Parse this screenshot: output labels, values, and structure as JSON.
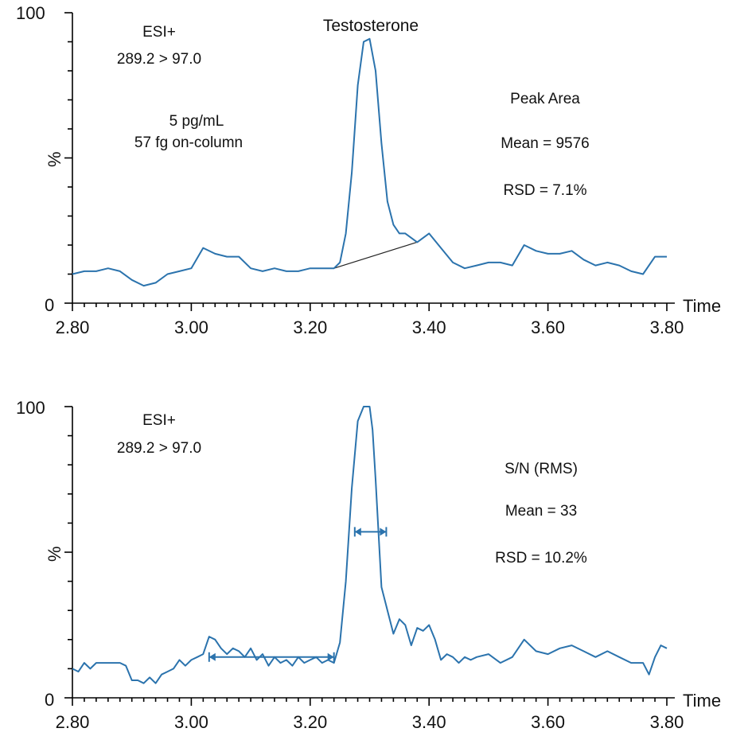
{
  "chart_data": [
    {
      "type": "line",
      "title": "Testosterone",
      "ylabel": "%",
      "xlabel": "Time",
      "xlim": [
        2.8,
        3.8
      ],
      "ylim": [
        0,
        100
      ],
      "x_ticks": [
        "2.80",
        "3.00",
        "3.20",
        "3.40",
        "3.60",
        "3.80"
      ],
      "y_ticks": [
        "0",
        "100"
      ],
      "annotations": {
        "ionization": "ESI+",
        "transition": "289.2 > 97.0",
        "conc": "5 pg/mL",
        "on_column": "57 fg on-column",
        "metric_title": "Peak Area",
        "mean": "Mean = 9576",
        "rsd": "RSD = 7.1%"
      },
      "baseline_segment": {
        "x": [
          3.24,
          3.38
        ],
        "y": [
          12,
          21
        ]
      },
      "series": [
        {
          "color": "#2b73ad",
          "x": [
            2.8,
            2.82,
            2.84,
            2.86,
            2.88,
            2.9,
            2.92,
            2.94,
            2.96,
            2.98,
            3.0,
            3.02,
            3.04,
            3.06,
            3.08,
            3.1,
            3.12,
            3.14,
            3.16,
            3.18,
            3.2,
            3.22,
            3.24,
            3.25,
            3.26,
            3.27,
            3.28,
            3.29,
            3.3,
            3.31,
            3.32,
            3.33,
            3.34,
            3.35,
            3.36,
            3.38,
            3.4,
            3.42,
            3.44,
            3.46,
            3.48,
            3.5,
            3.52,
            3.54,
            3.56,
            3.58,
            3.6,
            3.62,
            3.64,
            3.66,
            3.68,
            3.7,
            3.72,
            3.74,
            3.76,
            3.78,
            3.8
          ],
          "y": [
            10,
            11,
            11,
            12,
            11,
            8,
            6,
            7,
            10,
            11,
            12,
            19,
            17,
            16,
            16,
            12,
            11,
            12,
            11,
            11,
            12,
            12,
            12,
            14,
            24,
            45,
            75,
            90,
            91,
            80,
            55,
            35,
            27,
            24,
            24,
            21,
            24,
            19,
            14,
            12,
            13,
            14,
            14,
            13,
            20,
            18,
            17,
            17,
            18,
            15,
            13,
            14,
            13,
            11,
            10,
            16,
            16
          ]
        }
      ]
    },
    {
      "type": "line",
      "ylabel": "%",
      "xlabel": "Time",
      "xlim": [
        2.8,
        3.8
      ],
      "ylim": [
        0,
        100
      ],
      "x_ticks": [
        "2.80",
        "3.00",
        "3.20",
        "3.40",
        "3.60",
        "3.80"
      ],
      "y_ticks": [
        "0",
        "100"
      ],
      "annotations": {
        "ionization": "ESI+",
        "transition": "289.2 > 97.0",
        "metric_title": "S/N (RMS)",
        "mean": "Mean = 33",
        "rsd": "RSD = 10.2%"
      },
      "noise_interval": {
        "x": [
          3.03,
          3.24
        ],
        "y": 14
      },
      "peak_width_interval": {
        "x": [
          3.275,
          3.328
        ],
        "y": 57
      },
      "series": [
        {
          "color": "#2b73ad",
          "x": [
            2.8,
            2.81,
            2.82,
            2.83,
            2.84,
            2.86,
            2.88,
            2.89,
            2.9,
            2.91,
            2.92,
            2.93,
            2.94,
            2.95,
            2.96,
            2.97,
            2.98,
            2.99,
            3.0,
            3.01,
            3.02,
            3.03,
            3.04,
            3.05,
            3.06,
            3.07,
            3.08,
            3.09,
            3.1,
            3.11,
            3.12,
            3.13,
            3.14,
            3.15,
            3.16,
            3.17,
            3.18,
            3.19,
            3.2,
            3.21,
            3.22,
            3.23,
            3.24,
            3.25,
            3.26,
            3.27,
            3.28,
            3.29,
            3.295,
            3.3,
            3.305,
            3.31,
            3.32,
            3.33,
            3.34,
            3.35,
            3.36,
            3.37,
            3.38,
            3.39,
            3.4,
            3.41,
            3.42,
            3.43,
            3.44,
            3.45,
            3.46,
            3.47,
            3.48,
            3.5,
            3.52,
            3.54,
            3.56,
            3.58,
            3.6,
            3.62,
            3.64,
            3.66,
            3.68,
            3.7,
            3.72,
            3.74,
            3.76,
            3.77,
            3.78,
            3.79,
            3.8
          ],
          "y": [
            10,
            9,
            12,
            10,
            12,
            12,
            12,
            11,
            6,
            6,
            5,
            7,
            5,
            8,
            9,
            10,
            13,
            11,
            13,
            14,
            15,
            21,
            20,
            17,
            15,
            17,
            16,
            14,
            17,
            13,
            15,
            11,
            14,
            12,
            13,
            11,
            14,
            12,
            13,
            14,
            12,
            13,
            12,
            19,
            40,
            72,
            95,
            100,
            100,
            100,
            92,
            75,
            38,
            30,
            22,
            27,
            25,
            18,
            24,
            23,
            25,
            20,
            13,
            15,
            14,
            12,
            14,
            13,
            14,
            15,
            12,
            14,
            20,
            16,
            15,
            17,
            18,
            16,
            14,
            16,
            14,
            12,
            12,
            8,
            14,
            18,
            17
          ]
        }
      ]
    }
  ]
}
